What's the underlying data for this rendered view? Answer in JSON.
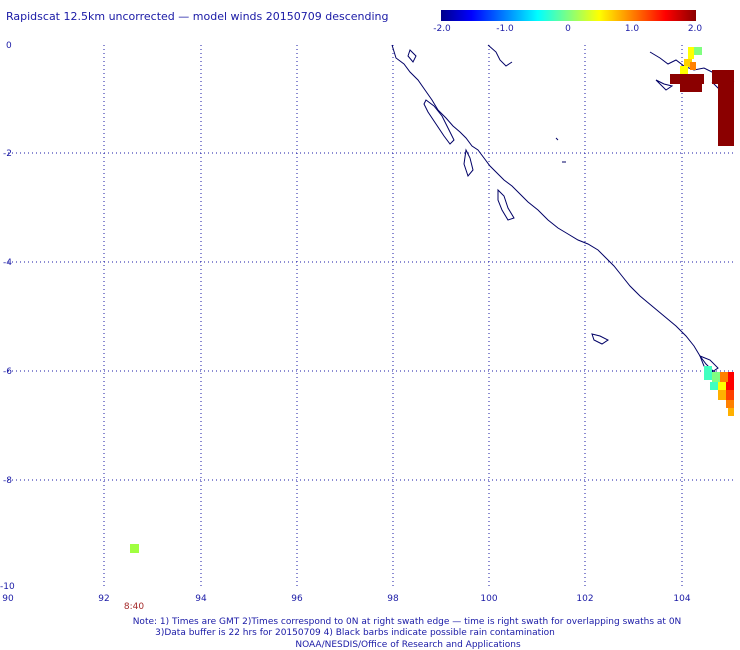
{
  "title": "Rapidscat 12.5km uncorrected — model winds 20150709 descending",
  "colorbar": {
    "min": -2.0,
    "max": 2.0,
    "tick_labels": [
      "-2.0",
      "-1.0",
      "0",
      "1.0",
      "2.0"
    ],
    "colors": [
      "#00008b",
      "#0000ff",
      "#0080ff",
      "#00ffff",
      "#80ff80",
      "#ffff00",
      "#ff8000",
      "#ff0000",
      "#8b0000"
    ]
  },
  "axes": {
    "x_ticks": [
      "90",
      "92",
      "94",
      "96",
      "98",
      "100",
      "102",
      "104"
    ],
    "y_ticks": [
      "0",
      "-2",
      "-4",
      "-6",
      "-8",
      "-10"
    ],
    "lon_range": [
      90,
      105
    ],
    "lat_range": [
      -10,
      0
    ]
  },
  "swath_time": "8:40",
  "note": {
    "line1": "Note: 1) Times are GMT 2)Times correspond to 0N at right swath edge — time is right swath for overlapping swaths at 0N",
    "line2": "3)Data buffer is 22 hrs for 20150709 4) Black barbs indicate possible rain contamination",
    "line3": "NOAA/NESDIS/Office of Research and Applications"
  }
}
